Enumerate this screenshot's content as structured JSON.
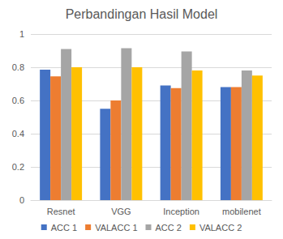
{
  "chart_data": {
    "type": "bar",
    "title": "Perbandingan Hasil Model",
    "categories": [
      "Resnet",
      "VGG",
      "Inception",
      "mobilenet"
    ],
    "series": [
      {
        "name": "ACC 1",
        "color": "#4472c4",
        "values": [
          0.785,
          0.55,
          0.69,
          0.68
        ]
      },
      {
        "name": "VALACC 1",
        "color": "#ed7d31",
        "values": [
          0.745,
          0.6,
          0.675,
          0.68
        ]
      },
      {
        "name": "ACC 2",
        "color": "#a5a5a5",
        "values": [
          0.91,
          0.915,
          0.895,
          0.78
        ]
      },
      {
        "name": "VALACC 2",
        "color": "#ffc000",
        "values": [
          0.8,
          0.8,
          0.78,
          0.75
        ]
      }
    ],
    "ylim": [
      0,
      1
    ],
    "yticks": [
      0,
      0.2,
      0.4,
      0.6,
      0.8,
      1
    ],
    "grid": true,
    "legend": "bottom"
  }
}
